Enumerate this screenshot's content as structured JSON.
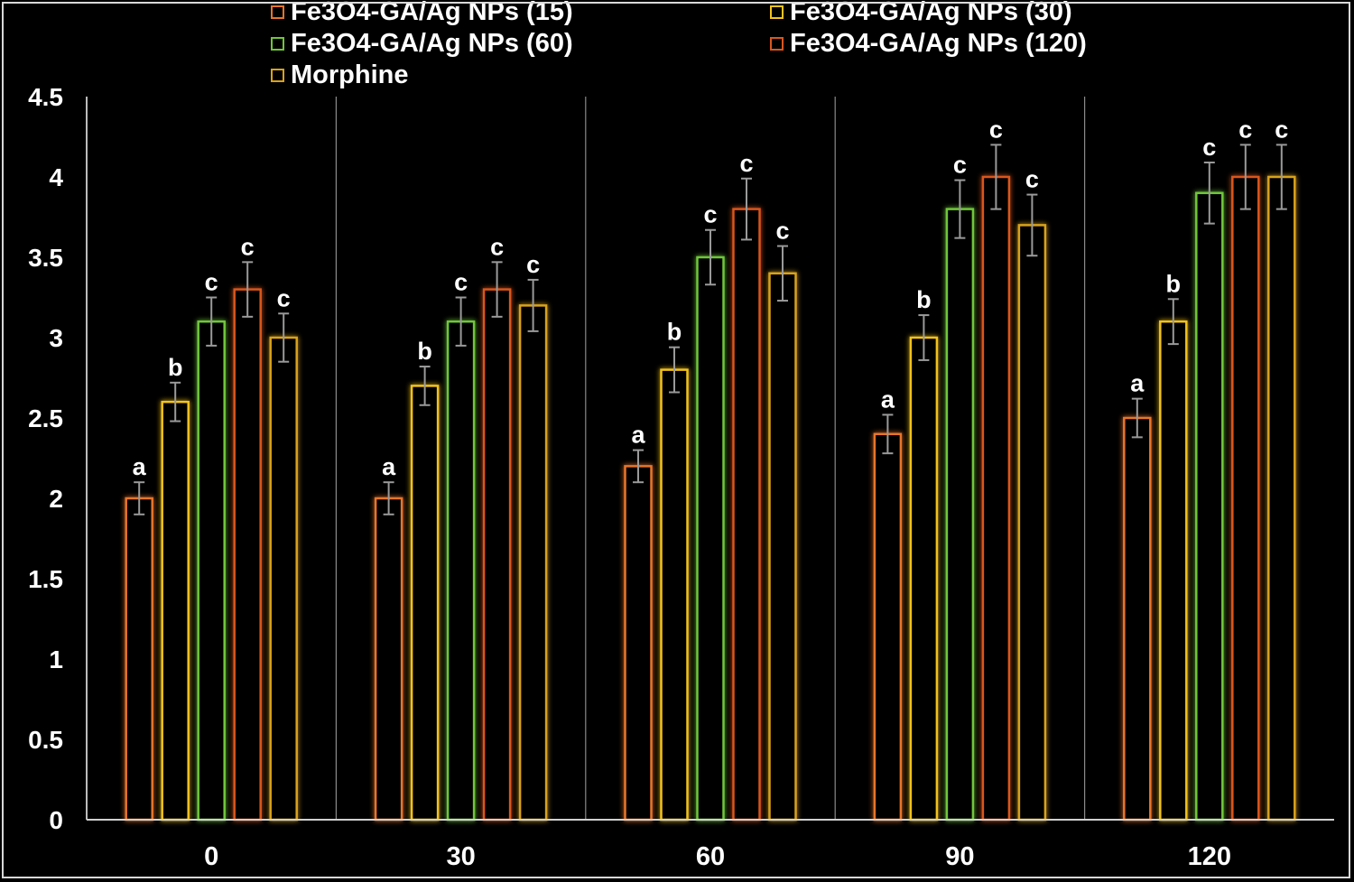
{
  "chart_data": {
    "type": "bar",
    "title": "",
    "xlabel": "",
    "ylabel": "",
    "ylim": [
      0,
      4.5
    ],
    "yticks": [
      "0",
      "0.5",
      "1",
      "1.5",
      "2",
      "2.5",
      "3",
      "3.5",
      "4",
      "4.5"
    ],
    "categories": [
      "0",
      "30",
      "60",
      "90",
      "120"
    ],
    "grid": "vertical separators between categories",
    "legend_position": "top",
    "series": [
      {
        "name": "Fe3O4-GA/Ag NPs (15)",
        "color": "#e8742a",
        "values": [
          2.0,
          2.0,
          2.2,
          2.4,
          2.5
        ],
        "errors": [
          0.1,
          0.1,
          0.1,
          0.12,
          0.12
        ],
        "labels": [
          "a",
          "a",
          "a",
          "a",
          "a"
        ]
      },
      {
        "name": "Fe3O4-GA/Ag NPs (30)",
        "color": "#f2c21b",
        "values": [
          2.6,
          2.7,
          2.8,
          3.0,
          3.1
        ],
        "errors": [
          0.12,
          0.12,
          0.14,
          0.14,
          0.14
        ],
        "labels": [
          "b",
          "b",
          "b",
          "b",
          "b"
        ]
      },
      {
        "name": "Fe3O4-GA/Ag NPs (60)",
        "color": "#6fc63a",
        "values": [
          3.1,
          3.1,
          3.5,
          3.8,
          3.9
        ],
        "errors": [
          0.15,
          0.15,
          0.17,
          0.18,
          0.19
        ],
        "labels": [
          "c",
          "c",
          "c",
          "c",
          "c"
        ]
      },
      {
        "name": "Fe3O4-GA/Ag NPs (120)",
        "color": "#d9571e",
        "values": [
          3.3,
          3.3,
          3.8,
          4.0,
          4.0
        ],
        "errors": [
          0.17,
          0.17,
          0.19,
          0.2,
          0.2
        ],
        "labels": [
          "c",
          "c",
          "c",
          "c",
          "c"
        ]
      },
      {
        "name": "Morphine",
        "color": "#d9a21c",
        "values": [
          3.0,
          3.2,
          3.4,
          3.7,
          4.0
        ],
        "errors": [
          0.15,
          0.16,
          0.17,
          0.19,
          0.2
        ],
        "labels": [
          "c",
          "c",
          "c",
          "c",
          "c"
        ]
      }
    ]
  }
}
